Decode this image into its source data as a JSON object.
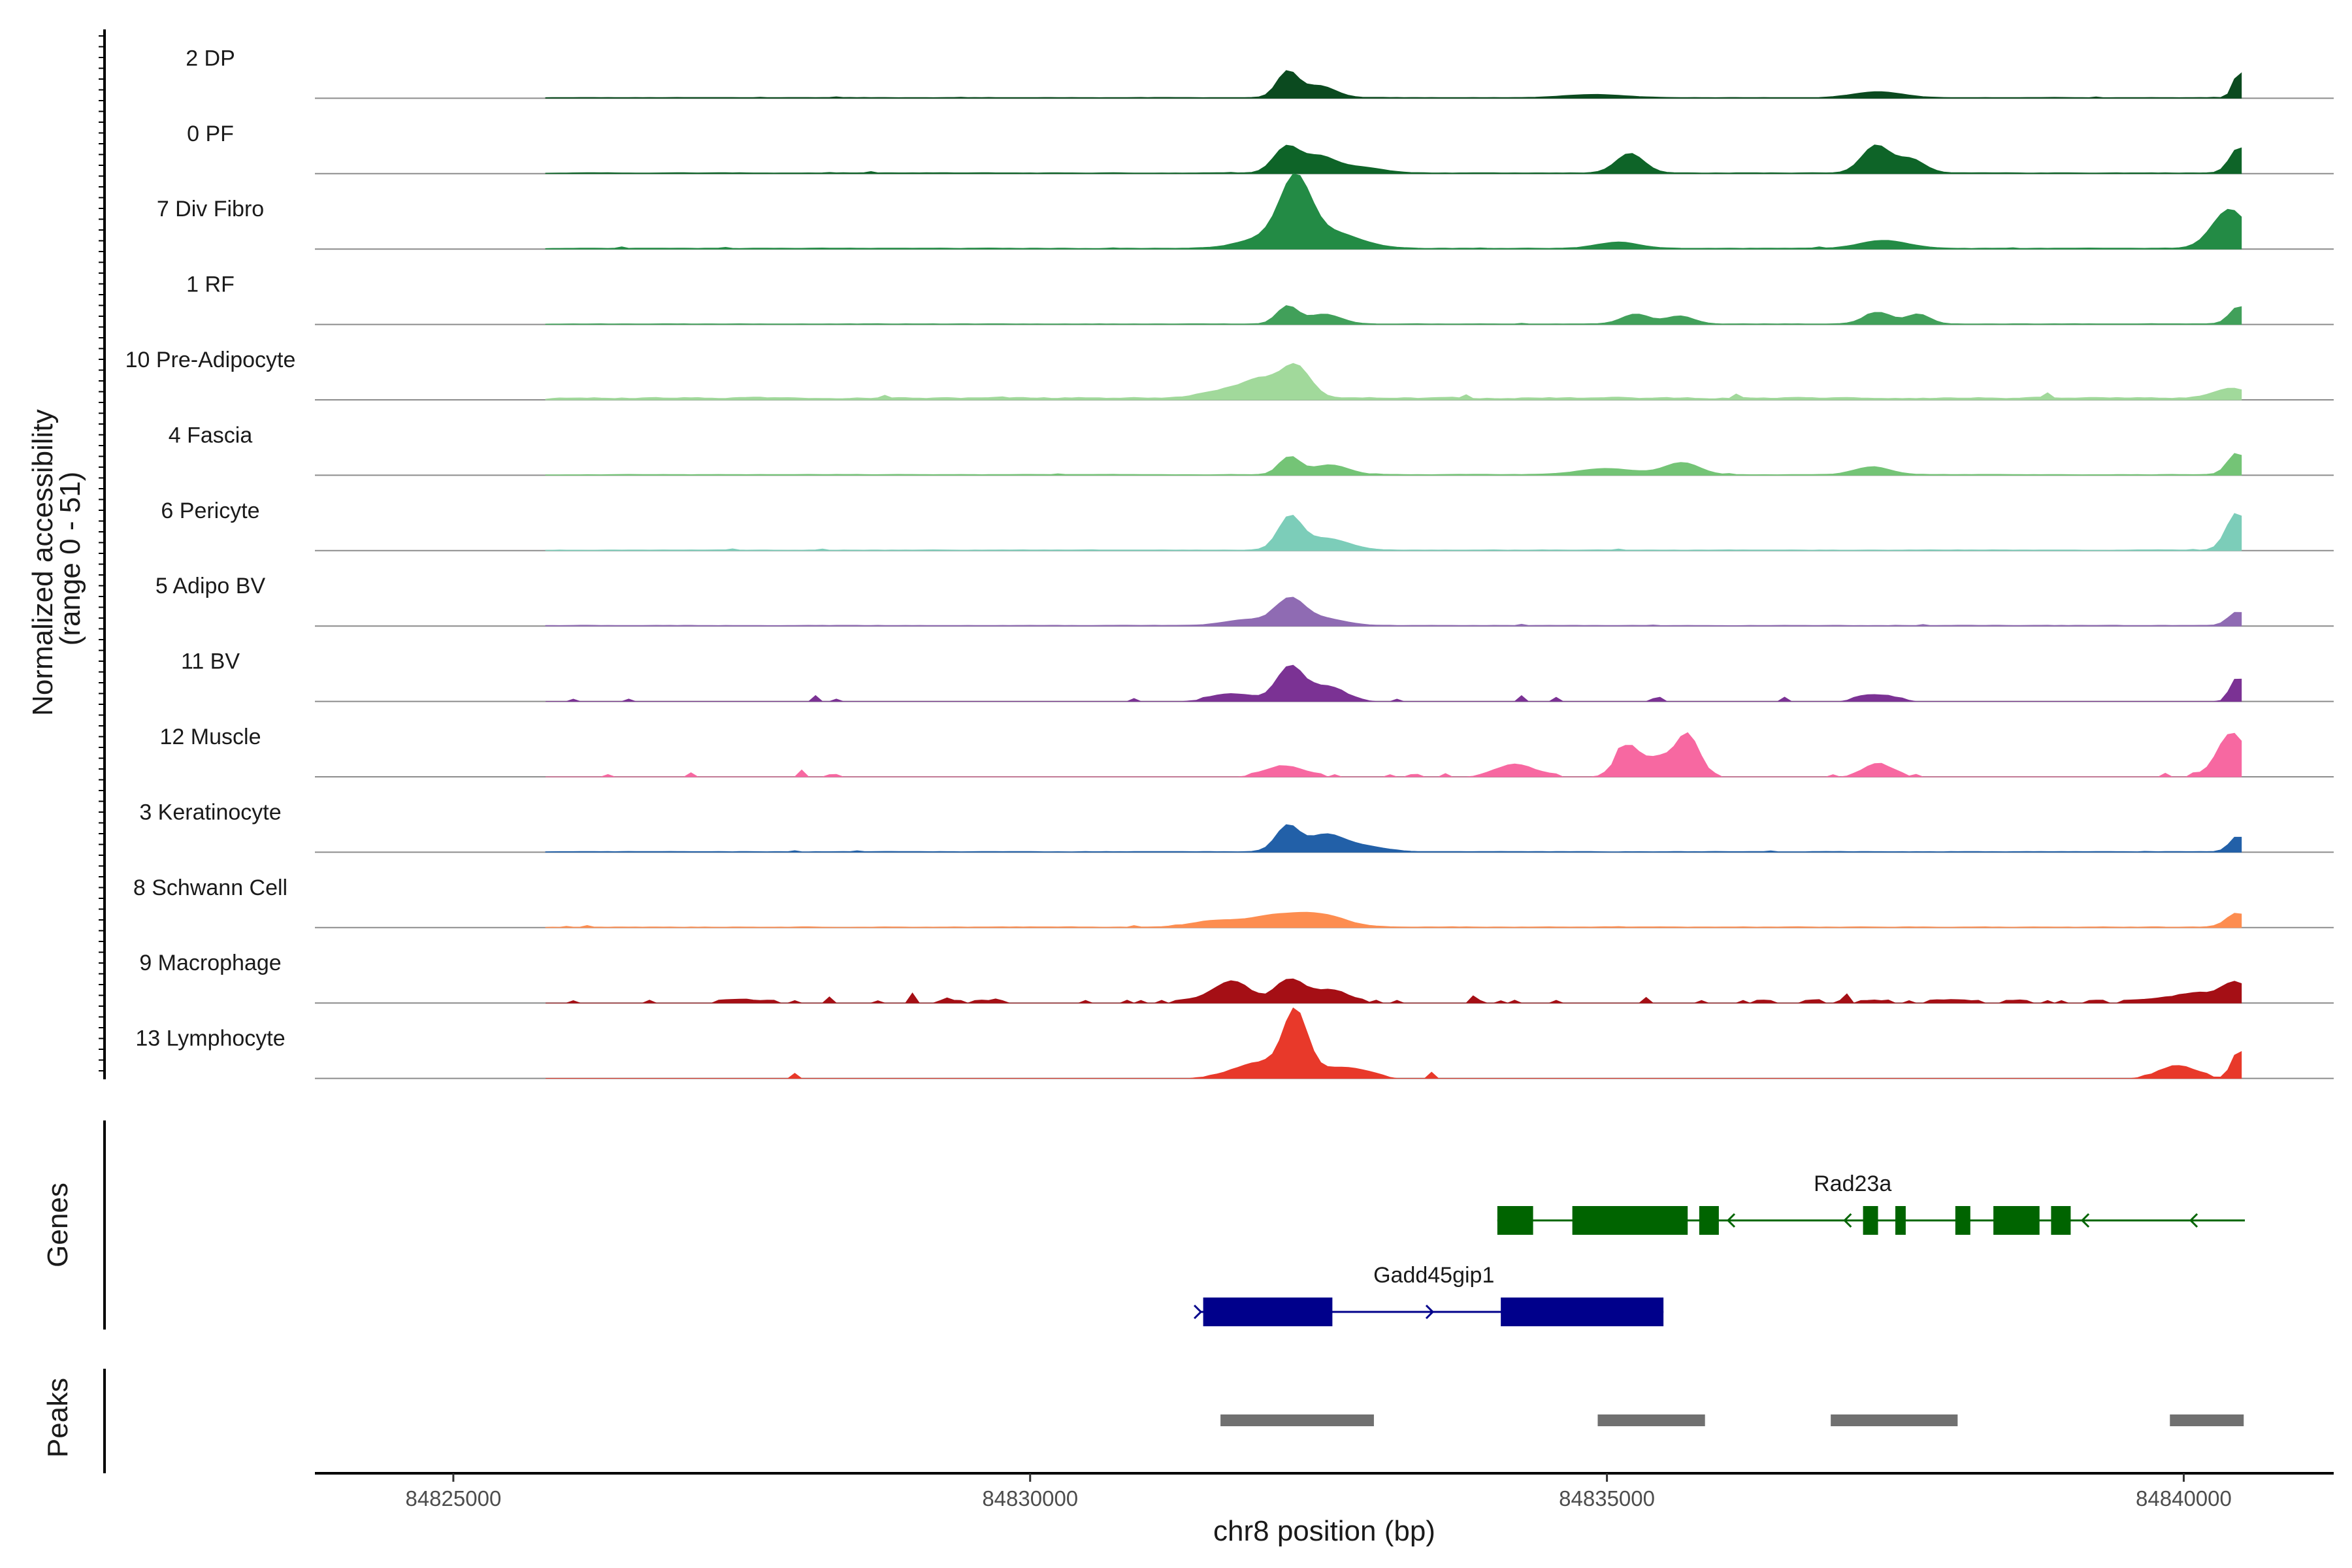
{
  "chart_data": {
    "type": "area",
    "title": "",
    "ylabel": "Normalized accessibility\n(range 0 - 51)",
    "y_range": [
      0,
      51
    ],
    "xlabel": "chr8 position (bp)",
    "xlim": [
      84823800,
      84841300
    ],
    "x_ticks": [
      84825000,
      84830000,
      84835000,
      84840000
    ],
    "track_x_range": [
      84823800,
      84840530
    ],
    "genes_label": "Genes",
    "peaks_label": "Peaks",
    "tracks": [
      {
        "name": "2 DP",
        "color": "#0b4a1f",
        "baseline": 0.7,
        "noise": 0.25,
        "peaks": [
          [
            84832230,
            90,
            13
          ],
          [
            84832500,
            140,
            6
          ],
          [
            84834900,
            250,
            1.5
          ],
          [
            84837350,
            200,
            3
          ],
          [
            84840480,
            50,
            13
          ]
        ]
      },
      {
        "name": "0 PF",
        "color": "#0e6428",
        "baseline": 0.7,
        "noise": 0.3,
        "peaks": [
          [
            84832220,
            110,
            13
          ],
          [
            84832500,
            140,
            8
          ],
          [
            84832850,
            200,
            3
          ],
          [
            84835200,
            120,
            10
          ],
          [
            84837330,
            120,
            14
          ],
          [
            84837630,
            120,
            7
          ],
          [
            84840480,
            80,
            13
          ]
        ]
      },
      {
        "name": "7 Div Fibro",
        "color": "#238b45",
        "baseline": 0.6,
        "noise": 0.4,
        "peaks": [
          [
            84832300,
            130,
            30
          ],
          [
            84832600,
            250,
            8
          ],
          [
            84832100,
            250,
            6
          ],
          [
            84835100,
            180,
            3
          ],
          [
            84837400,
            200,
            4
          ],
          [
            84840400,
            150,
            20
          ]
        ]
      },
      {
        "name": "1 RF",
        "color": "#41a05a",
        "baseline": 0.5,
        "noise": 0.25,
        "peaks": [
          [
            84832230,
            90,
            9
          ],
          [
            84832550,
            140,
            5
          ],
          [
            84835250,
            120,
            5
          ],
          [
            84835630,
            120,
            4
          ],
          [
            84837350,
            120,
            6
          ],
          [
            84837700,
            100,
            5
          ],
          [
            84840480,
            80,
            9
          ]
        ]
      },
      {
        "name": "10 Pre-Adipocyte",
        "color": "#a1d99b",
        "baseline": 0.9,
        "noise": 1.3,
        "peaks": [
          [
            84832300,
            130,
            16
          ],
          [
            84832000,
            150,
            8
          ],
          [
            84831700,
            200,
            4
          ],
          [
            84840400,
            150,
            5
          ]
        ]
      },
      {
        "name": "4 Fascia",
        "color": "#74c476",
        "baseline": 0.5,
        "noise": 0.35,
        "peaks": [
          [
            84832250,
            90,
            9
          ],
          [
            84832600,
            150,
            5
          ],
          [
            84835000,
            250,
            3
          ],
          [
            84835650,
            150,
            6
          ],
          [
            84837300,
            150,
            4
          ],
          [
            84840460,
            80,
            11
          ]
        ]
      },
      {
        "name": "6 Pericyte",
        "color": "#7ccdb9",
        "baseline": 0.4,
        "noise": 0.35,
        "peaks": [
          [
            84832250,
            100,
            16
          ],
          [
            84832550,
            200,
            6
          ],
          [
            84840460,
            90,
            19
          ]
        ]
      },
      {
        "name": "5 Adipo BV",
        "color": "#8f6bb3",
        "baseline": 0.5,
        "noise": 0.3,
        "peaks": [
          [
            84832250,
            120,
            12
          ],
          [
            84832500,
            200,
            4
          ],
          [
            84831900,
            200,
            3
          ],
          [
            84840470,
            80,
            7
          ]
        ]
      },
      {
        "name": "11 BV",
        "color": "#7b3294",
        "baseline": 0.0,
        "noise": 1.6,
        "threshold": 1.2,
        "peaks": [
          [
            84832250,
            110,
            16
          ],
          [
            84832550,
            160,
            7
          ],
          [
            84831800,
            200,
            3
          ],
          [
            84837350,
            150,
            3
          ],
          [
            84840470,
            60,
            12
          ]
        ]
      },
      {
        "name": "12 Muscle",
        "color": "#f768a1",
        "baseline": 0.0,
        "noise": 1.5,
        "threshold": 1.1,
        "peaks": [
          [
            84835180,
            100,
            15
          ],
          [
            84835700,
            100,
            21
          ],
          [
            84835450,
            120,
            9
          ],
          [
            84834200,
            150,
            6
          ],
          [
            84837350,
            120,
            6
          ],
          [
            84840420,
            120,
            22
          ],
          [
            84832200,
            150,
            5
          ]
        ]
      },
      {
        "name": "3 Keratinocyte",
        "color": "#2260a8",
        "baseline": 0.5,
        "noise": 0.3,
        "peaks": [
          [
            84832230,
            100,
            13
          ],
          [
            84832550,
            150,
            8
          ],
          [
            84832850,
            200,
            3
          ],
          [
            84840470,
            70,
            8
          ]
        ]
      },
      {
        "name": "8 Schwann Cell",
        "color": "#fd8d50",
        "baseline": 0.3,
        "noise": 0.45,
        "peaks": [
          [
            84832150,
            250,
            6
          ],
          [
            84832550,
            200,
            5
          ],
          [
            84831600,
            200,
            3
          ],
          [
            84840460,
            90,
            7
          ]
        ]
      },
      {
        "name": "9 Macrophage",
        "color": "#a50f15",
        "baseline": 0.0,
        "noise": 2.2,
        "threshold": 1.2,
        "peaks": [
          [
            84831750,
            150,
            10
          ],
          [
            84832250,
            120,
            11
          ],
          [
            84832600,
            150,
            6
          ],
          [
            84840450,
            120,
            9
          ],
          [
            84840100,
            200,
            4
          ]
        ]
      },
      {
        "name": "13 Lymphocyte",
        "color": "#e8392a",
        "baseline": 0.0,
        "noise": 1.5,
        "threshold": 1.6,
        "peaks": [
          [
            84832300,
            100,
            30
          ],
          [
            84832050,
            250,
            8
          ],
          [
            84832700,
            200,
            5
          ],
          [
            84840480,
            60,
            14
          ],
          [
            84839950,
            150,
            6
          ]
        ]
      }
    ],
    "genes": [
      {
        "name": "Rad23a",
        "color": "#006400",
        "strand": "-",
        "start": 84834050,
        "end": 84840530,
        "exons": [
          [
            84834050,
            84834360
          ],
          [
            84834700,
            84835700
          ],
          [
            84835800,
            84835970
          ],
          [
            84837220,
            84837350
          ],
          [
            84837500,
            84837590
          ],
          [
            84838020,
            84838150
          ],
          [
            84838350,
            84838750
          ],
          [
            84838850,
            84839020
          ]
        ],
        "arrows": [
          84836050,
          84837060,
          84839120,
          84840060
        ],
        "label_x": 84837130
      },
      {
        "name": "Gadd45gip1",
        "color": "#00008b",
        "strand": "+",
        "start": 84831480,
        "end": 84835490,
        "exons": [
          [
            84831500,
            84832620
          ],
          [
            84834080,
            84835490
          ]
        ],
        "arrows": [
          84831480,
          84833490
        ],
        "label_x": 84833500
      }
    ],
    "peaks": [
      [
        84831650,
        84832980
      ],
      [
        84834920,
        84835850
      ],
      [
        84836940,
        84838040
      ],
      [
        84839880,
        84840520
      ]
    ]
  }
}
